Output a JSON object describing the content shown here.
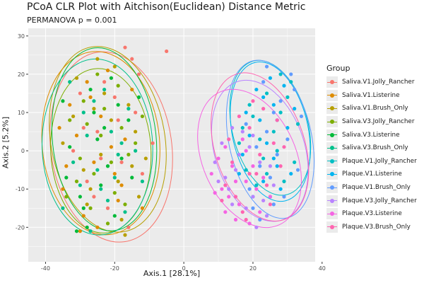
{
  "chart_data": {
    "type": "scatter",
    "title": "PCoA CLR Plot with Aitchison(Euclidean) Distance Metric",
    "subtitle": "PERMANOVA p = 0.001",
    "xlabel": "Axis.1   [28.1%]",
    "ylabel": "Axis.2   [5.2%]",
    "xlim": [
      -45,
      38
    ],
    "ylim": [
      -29,
      32
    ],
    "x_ticks": [
      -40,
      -20,
      0,
      20,
      40
    ],
    "y_ticks": [
      -20,
      -10,
      0,
      10,
      20,
      30
    ],
    "grid": true,
    "ellipses": true,
    "legend_title": "Group",
    "legend_position": "right",
    "series": [
      {
        "name": "Saliva.V1.Jolly_Rancher",
        "color": "#F8766D",
        "ellipse": {
          "cx": -21,
          "cy": 1,
          "rx": 17.5,
          "ry": 25,
          "angle": 8
        },
        "points": [
          [
            -17,
            27
          ],
          [
            -15,
            24
          ],
          [
            -13,
            20
          ],
          [
            -30,
            15
          ],
          [
            -25,
            5
          ],
          [
            -18,
            -3
          ],
          [
            -28,
            -8
          ],
          [
            -22,
            -15
          ],
          [
            -14,
            10
          ],
          [
            -32,
            0
          ],
          [
            -19,
            8
          ],
          [
            -26,
            -12
          ],
          [
            -9,
            2
          ],
          [
            -23,
            18
          ],
          [
            -16,
            -20
          ],
          [
            -29,
            6
          ],
          [
            -12,
            -6
          ],
          [
            -20,
            14
          ],
          [
            -5,
            26
          ],
          [
            -24,
            -2
          ]
        ]
      },
      {
        "name": "Saliva.V1.Listerine",
        "color": "#DE8C00",
        "ellipse": {
          "cx": -24,
          "cy": 2,
          "rx": 17,
          "ry": 24,
          "angle": 5
        },
        "points": [
          [
            -27,
            14
          ],
          [
            -31,
            4
          ],
          [
            -20,
            -6
          ],
          [
            -35,
            -10
          ],
          [
            -22,
            21
          ],
          [
            -17,
            3
          ],
          [
            -29,
            -17
          ],
          [
            -24,
            9
          ],
          [
            -33,
            12
          ],
          [
            -19,
            -13
          ],
          [
            -26,
            -3
          ],
          [
            -15,
            16
          ],
          [
            -30,
            -21
          ],
          [
            -21,
            1
          ],
          [
            -36,
            6
          ],
          [
            -18,
            -9
          ],
          [
            -28,
            18
          ],
          [
            -12,
            -15
          ],
          [
            -25,
            -20
          ],
          [
            -34,
            -4
          ]
        ]
      },
      {
        "name": "Saliva.V1.Brush_Only",
        "color": "#B79F00",
        "ellipse": {
          "cx": -22,
          "cy": 3,
          "rx": 16.5,
          "ry": 24.5,
          "angle": 10
        },
        "points": [
          [
            -20,
            22
          ],
          [
            -16,
            12
          ],
          [
            -24,
            -1
          ],
          [
            -32,
            9
          ],
          [
            -18,
            -18
          ],
          [
            -27,
            -10
          ],
          [
            -14,
            5
          ],
          [
            -23,
            15
          ],
          [
            -29,
            -5
          ],
          [
            -11,
            -2
          ],
          [
            -25,
            24
          ],
          [
            -19,
            -8
          ],
          [
            -31,
            19
          ],
          [
            -17,
            -22
          ],
          [
            -21,
            8
          ],
          [
            -35,
            2
          ],
          [
            -13,
            -12
          ],
          [
            -26,
            11
          ],
          [
            -15,
            -4
          ],
          [
            -28,
            -14
          ]
        ]
      },
      {
        "name": "Saliva.V3.Jolly_Rancher",
        "color": "#7CAE00",
        "ellipse": {
          "cx": -24,
          "cy": 0,
          "rx": 14.5,
          "ry": 21.5,
          "angle": 3
        },
        "points": [
          [
            -23,
            11
          ],
          [
            -30,
            -2
          ],
          [
            -18,
            6
          ],
          [
            -27,
            -15
          ],
          [
            -20,
            -11
          ],
          [
            -33,
            8
          ],
          [
            -16,
            -1
          ],
          [
            -25,
            20
          ],
          [
            -22,
            -19
          ],
          [
            -29,
            13
          ],
          [
            -14,
            2
          ],
          [
            -31,
            -8
          ],
          [
            -19,
            17
          ],
          [
            -26,
            -6
          ],
          [
            -24,
            4
          ],
          [
            -17,
            -14
          ],
          [
            -34,
            -12
          ],
          [
            -21,
            -3
          ],
          [
            -28,
            7
          ],
          [
            -12,
            9
          ]
        ]
      },
      {
        "name": "Saliva.V3.Listerine",
        "color": "#00BA38",
        "ellipse": {
          "cx": -23,
          "cy": 3,
          "rx": 15,
          "ry": 24,
          "angle": 6
        },
        "points": [
          [
            -31,
            -21
          ],
          [
            -28,
            -20
          ],
          [
            -25,
            3
          ],
          [
            -19,
            12
          ],
          [
            -34,
            -7
          ],
          [
            -22,
            -4
          ],
          [
            -16,
            8
          ],
          [
            -27,
            16
          ],
          [
            -30,
            -12
          ],
          [
            -20,
            -17
          ],
          [
            -13,
            14
          ],
          [
            -24,
            -9
          ],
          [
            -33,
            1
          ],
          [
            -18,
            -2
          ],
          [
            -26,
            10
          ],
          [
            -21,
            19
          ],
          [
            -29,
            -15
          ],
          [
            -15,
            -7
          ],
          [
            -23,
            6
          ],
          [
            -35,
            13
          ]
        ]
      },
      {
        "name": "Saliva.V3.Brush_Only",
        "color": "#00C08B",
        "ellipse": {
          "cx": -25,
          "cy": 1,
          "rx": 16,
          "ry": 23,
          "angle": 2
        },
        "points": [
          [
            -24,
            -10
          ],
          [
            -29,
            10
          ],
          [
            -17,
            -16
          ],
          [
            -32,
            -3
          ],
          [
            -21,
            5
          ],
          [
            -27,
            -21
          ],
          [
            -14,
            0
          ],
          [
            -26,
            13
          ],
          [
            -20,
            -7
          ],
          [
            -35,
            -15
          ],
          [
            -23,
            16
          ],
          [
            -18,
            2
          ],
          [
            -30,
            -9
          ],
          [
            -16,
            11
          ],
          [
            -28,
            4
          ],
          [
            -22,
            -13
          ],
          [
            -33,
            18
          ],
          [
            -19,
            -1
          ],
          [
            -25,
            -5
          ],
          [
            -12,
            -8
          ]
        ]
      },
      {
        "name": "Plaque.V1.Jolly_Rancher",
        "color": "#00BFC4",
        "ellipse": {
          "cx": 25,
          "cy": 6,
          "rx": 11,
          "ry": 18,
          "angle": 14
        },
        "points": [
          [
            22,
            3
          ],
          [
            28,
            10
          ],
          [
            18,
            -5
          ],
          [
            31,
            18
          ],
          [
            25,
            -12
          ],
          [
            20,
            9
          ],
          [
            27,
            0
          ],
          [
            33,
            7
          ],
          [
            24,
            15
          ],
          [
            16,
            2
          ],
          [
            29,
            -8
          ],
          [
            23,
            -2
          ],
          [
            30,
            14
          ],
          [
            19,
            12
          ],
          [
            26,
            5
          ],
          [
            21,
            -9
          ],
          [
            32,
            -3
          ],
          [
            17,
            6
          ],
          [
            28,
            20
          ],
          [
            24,
            -6
          ]
        ]
      },
      {
        "name": "Plaque.V1.Listerine",
        "color": "#00B4F0",
        "ellipse": {
          "cx": 25,
          "cy": 5,
          "rx": 11,
          "ry": 18.5,
          "angle": 12
        },
        "points": [
          [
            19,
            4
          ],
          [
            26,
            12
          ],
          [
            23,
            -8
          ],
          [
            30,
            6
          ],
          [
            21,
            16
          ],
          [
            27,
            -4
          ],
          [
            17,
            -1
          ],
          [
            32,
            11
          ],
          [
            24,
            2
          ],
          [
            20,
            -12
          ],
          [
            29,
            17
          ],
          [
            22,
            8
          ],
          [
            28,
            -10
          ],
          [
            25,
            19
          ],
          [
            18,
            10
          ],
          [
            31,
            -6
          ],
          [
            23,
            14
          ],
          [
            26,
            -2
          ],
          [
            16,
            -6
          ],
          [
            27,
            8
          ]
        ]
      },
      {
        "name": "Plaque.V1.Brush_Only",
        "color": "#619CFF",
        "ellipse": {
          "cx": 25,
          "cy": 3,
          "rx": 12,
          "ry": 21,
          "angle": 12
        },
        "points": [
          [
            26,
            -14
          ],
          [
            22,
            -18
          ],
          [
            30,
            3
          ],
          [
            24,
            22
          ],
          [
            33,
            -5
          ],
          [
            19,
            -10
          ],
          [
            28,
            13
          ],
          [
            21,
            1
          ],
          [
            32,
            16
          ],
          [
            25,
            -7
          ],
          [
            18,
            7
          ],
          [
            29,
            -12
          ],
          [
            23,
            18
          ],
          [
            27,
            -1
          ],
          [
            34,
            9
          ],
          [
            20,
            -15
          ],
          [
            31,
            20
          ],
          [
            24,
            5
          ],
          [
            26,
            10
          ],
          [
            22,
            -4
          ]
        ]
      },
      {
        "name": "Plaque.V3.Jolly_Rancher",
        "color": "#B983FF",
        "ellipse": {
          "cx": 22,
          "cy": 0,
          "rx": 13,
          "ry": 19,
          "angle": 18
        },
        "points": [
          [
            15,
            -5
          ],
          [
            20,
            -12
          ],
          [
            11,
            2
          ],
          [
            24,
            -17
          ],
          [
            17,
            5
          ],
          [
            13,
            -10
          ],
          [
            22,
            -3
          ],
          [
            9,
            -3
          ],
          [
            26,
            -9
          ],
          [
            18,
            -15
          ],
          [
            14,
            6
          ],
          [
            21,
            -20
          ],
          [
            12,
            -7
          ],
          [
            19,
            1
          ],
          [
            23,
            -13
          ],
          [
            16,
            -1
          ],
          [
            10,
            -8
          ],
          [
            25,
            -4
          ],
          [
            20,
            4
          ],
          [
            14,
            -14
          ]
        ]
      },
      {
        "name": "Plaque.V3.Listerine",
        "color": "#F564E3",
        "ellipse": {
          "cx": 19,
          "cy": -2,
          "rx": 13.5,
          "ry": 19,
          "angle": 24
        },
        "points": [
          [
            13,
            -12
          ],
          [
            18,
            -8
          ],
          [
            10,
            -2
          ],
          [
            22,
            -16
          ],
          [
            15,
            -18
          ],
          [
            8,
            -6
          ],
          [
            20,
            -4
          ],
          [
            12,
            1
          ],
          [
            25,
            -12
          ],
          [
            16,
            -14
          ],
          [
            11,
            -10
          ],
          [
            19,
            -19
          ],
          [
            14,
            -4
          ],
          [
            23,
            -7
          ],
          [
            17,
            3
          ],
          [
            9,
            -11
          ],
          [
            21,
            -10
          ],
          [
            12,
            -16
          ],
          [
            18,
            0
          ],
          [
            15,
            -8
          ]
        ]
      },
      {
        "name": "Plaque.V3.Brush_Only",
        "color": "#FF64B0",
        "ellipse": {
          "cx": 22,
          "cy": 1,
          "rx": 13,
          "ry": 20,
          "angle": 18
        },
        "points": [
          [
            21,
            -6
          ],
          [
            14,
            -3
          ],
          [
            26,
            2
          ],
          [
            17,
            -16
          ],
          [
            23,
            11
          ],
          [
            12,
            -9
          ],
          [
            28,
            -4
          ],
          [
            19,
            6
          ],
          [
            15,
            -12
          ],
          [
            25,
            -14
          ],
          [
            20,
            13
          ],
          [
            13,
            3
          ],
          [
            27,
            8
          ],
          [
            18,
            -18
          ],
          [
            22,
            -1
          ],
          [
            16,
            9
          ],
          [
            24,
            -9
          ],
          [
            11,
            -13
          ],
          [
            29,
            1
          ],
          [
            19,
            -6
          ]
        ]
      }
    ]
  }
}
